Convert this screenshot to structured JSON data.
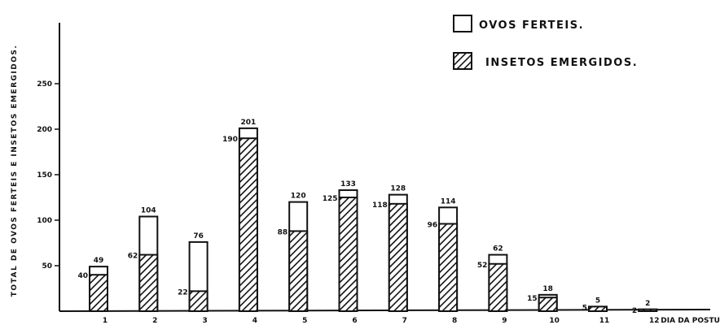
{
  "chart_data": {
    "type": "bar",
    "categories": [
      "1",
      "2",
      "3",
      "4",
      "5",
      "6",
      "7",
      "8",
      "9",
      "10",
      "11",
      "12"
    ],
    "series": [
      {
        "name": "OVOS FERTEIS.",
        "values": [
          49,
          104,
          76,
          201,
          120,
          133,
          128,
          114,
          62,
          18,
          5,
          2
        ]
      },
      {
        "name": "INSETOS EMERGIDOS.",
        "values": [
          40,
          62,
          22,
          190,
          88,
          125,
          118,
          96,
          52,
          15,
          5,
          2
        ]
      }
    ],
    "xlabel": "DIA DA POSTURA",
    "ylabel": "TOTAL DE OVOS FERTEIS E INSETOS EMERGIDOS.",
    "yticks": [
      50,
      100,
      150,
      200,
      250
    ],
    "ylim": [
      0,
      300
    ],
    "legend_position": "top-right",
    "colors": {
      "ink": "#111111",
      "background": "#ffffff"
    }
  }
}
